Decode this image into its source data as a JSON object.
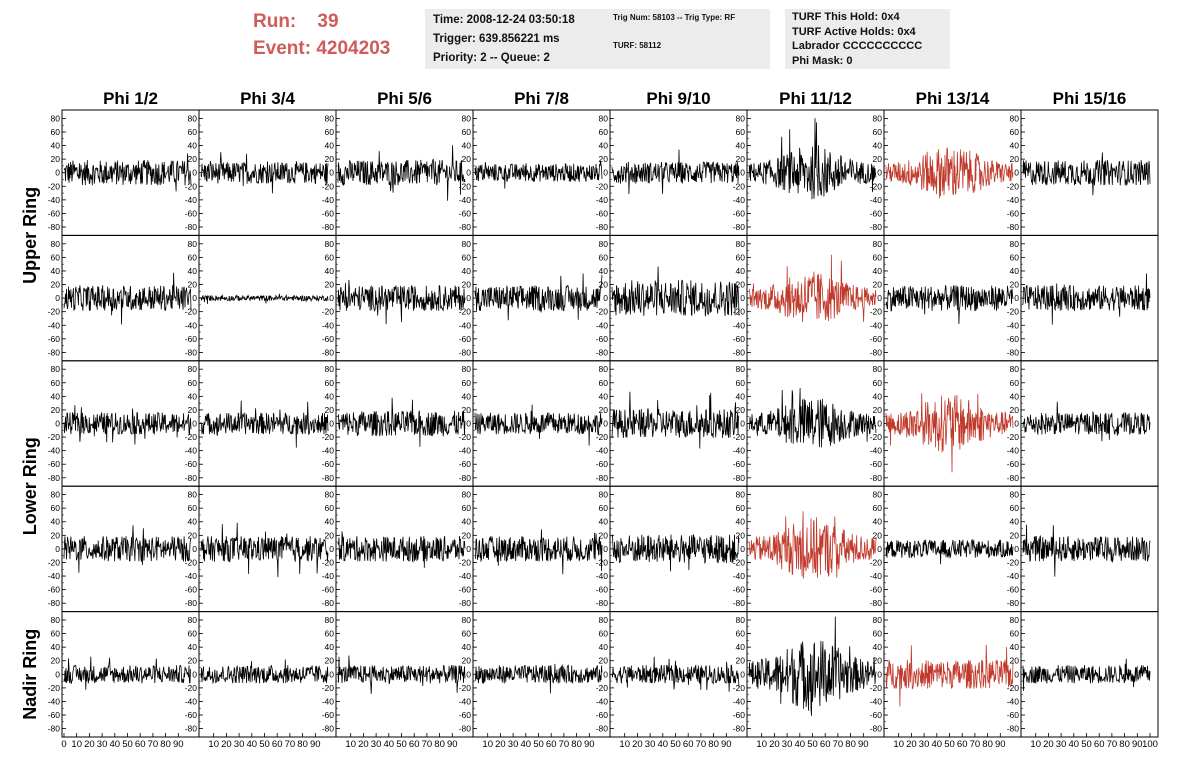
{
  "header": {
    "run_label": "Run:",
    "run_value": "39",
    "event_label": "Event:",
    "event_value": "4204203",
    "time": "Time: 2008-12-24 03:50:18",
    "trigger": "Trigger: 639.856221 ms",
    "priority": "Priority: 2 -- Queue: 2",
    "trig_num": "Trig Num: 58103 -- Trig Type: RF",
    "turf": "TURF: 58112",
    "turf_this_hold": "TURF This Hold: 0x4",
    "turf_active_holds": "TURF Active Holds: 0x4",
    "labrador": "Labrador CCCCCCCCCC",
    "phi_mask": "Phi Mask: 0"
  },
  "colors": {
    "trace": "#000000",
    "highlight": "#c0392b",
    "run_text": "#cf5b5b"
  },
  "chart_data": {
    "type": "line",
    "columns": [
      "Phi 1/2",
      "Phi 3/4",
      "Phi 5/6",
      "Phi 7/8",
      "Phi 9/10",
      "Phi 11/12",
      "Phi 13/14",
      "Phi 15/16"
    ],
    "row_labels": [
      "Upper Ring",
      "Lower Ring",
      "Nadir Ring"
    ],
    "panel_rows": 5,
    "ylim": [
      -85,
      85
    ],
    "y_ticks": [
      "80",
      "60",
      "40",
      "20",
      "0",
      "-20",
      "-40",
      "-60",
      "-80"
    ],
    "xlim": [
      0,
      100
    ],
    "x_tick_labels": [
      "0",
      "10",
      "20",
      "30",
      "40",
      "50",
      "60",
      "70",
      "80",
      "90",
      "100"
    ],
    "x_tick_values": [
      0,
      10,
      20,
      30,
      40,
      50,
      60,
      70,
      80,
      90,
      100
    ],
    "x_tick_texts_last_col": [
      "10",
      "20",
      "30",
      "40",
      "50",
      "60",
      "70",
      "80",
      "90",
      "100"
    ],
    "highlighted_panels": [
      [
        0,
        6
      ],
      [
        1,
        5
      ],
      [
        2,
        6
      ],
      [
        3,
        5
      ],
      [
        4,
        6
      ]
    ],
    "panel_amplitude": [
      [
        14,
        12,
        14,
        10,
        12,
        22,
        22,
        14
      ],
      [
        14,
        3,
        14,
        14,
        20,
        22,
        14,
        14
      ],
      [
        12,
        12,
        14,
        12,
        16,
        22,
        24,
        12
      ],
      [
        14,
        14,
        14,
        14,
        16,
        26,
        10,
        14
      ],
      [
        10,
        10,
        10,
        10,
        10,
        30,
        16,
        10
      ]
    ]
  }
}
